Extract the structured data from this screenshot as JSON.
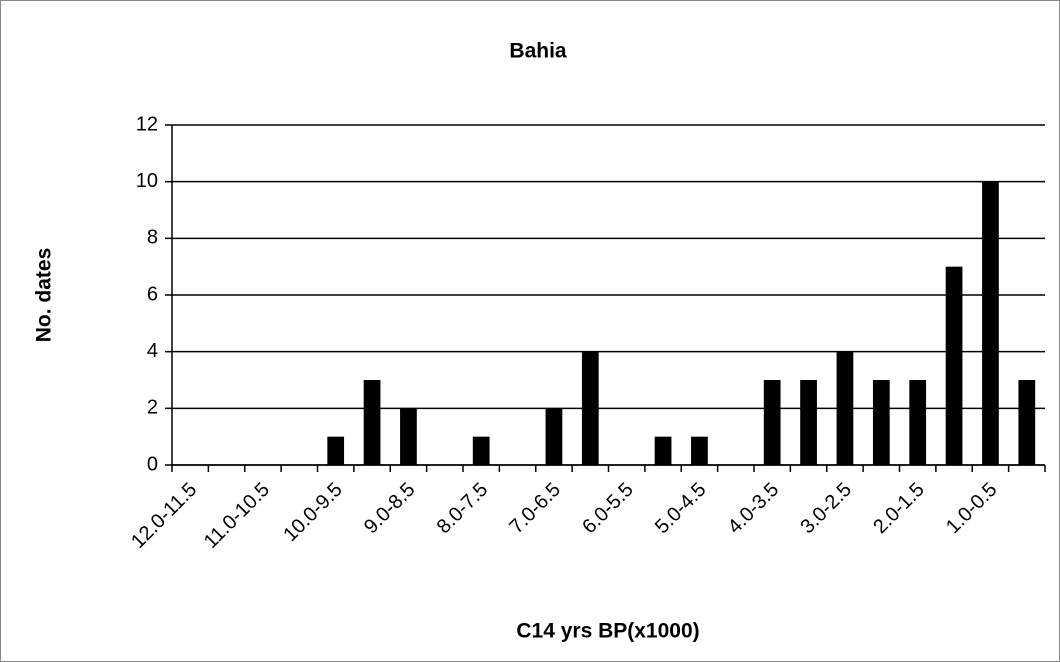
{
  "chart_data": {
    "type": "bar",
    "title": "Bahia",
    "x_label": "C14 yrs BP(x1000)",
    "y_label": "No. dates",
    "categories": [
      "12.0-11.5",
      null,
      "11.0-10.5",
      null,
      "10.0-9.5",
      null,
      "9.0-8.5",
      null,
      "8.0-7.5",
      null,
      "7.0-6.5",
      null,
      "6.0-5.5",
      null,
      "5.0-4.5",
      null,
      "4.0-3.5",
      null,
      "3.0-2.5",
      null,
      "2.0-1.5",
      null,
      "1.0-0.5",
      null
    ],
    "values": [
      0,
      0,
      0,
      0,
      1,
      3,
      2,
      0,
      1,
      0,
      2,
      4,
      0,
      1,
      1,
      0,
      3,
      3,
      4,
      3,
      3,
      7,
      10,
      3
    ],
    "color": "#000000",
    "ylim": [
      0,
      12
    ],
    "yticks": [
      0,
      2,
      4,
      6,
      8,
      10,
      12
    ],
    "grid": true
  }
}
